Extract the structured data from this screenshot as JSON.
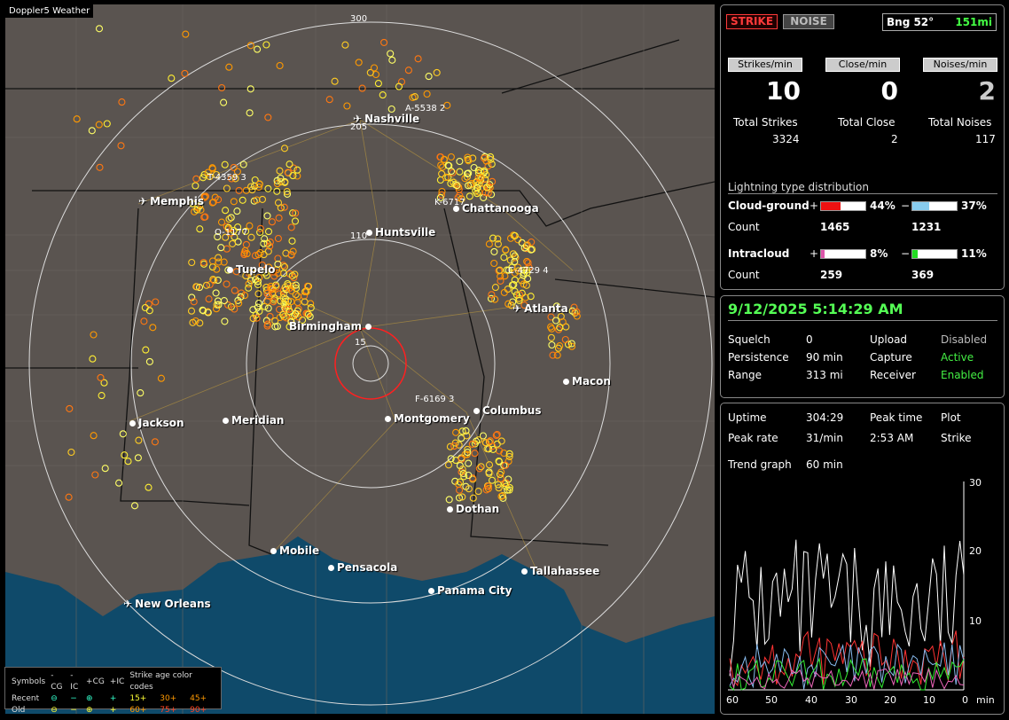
{
  "app_title": "Doppler5 Weather",
  "map": {
    "range_rings": [
      "300",
      "205",
      "110",
      "15"
    ],
    "cities": [
      {
        "name": "Nashville",
        "type": "airport"
      },
      {
        "name": "Memphis",
        "type": "airport"
      },
      {
        "name": "Chattanooga",
        "type": "city"
      },
      {
        "name": "Huntsville",
        "type": "city"
      },
      {
        "name": "Tupelo",
        "type": "city"
      },
      {
        "name": "Atlanta",
        "type": "airport"
      },
      {
        "name": "Birmingham",
        "type": "city"
      },
      {
        "name": "Macon",
        "type": "city"
      },
      {
        "name": "Jackson",
        "type": "airport"
      },
      {
        "name": "Meridian",
        "type": "city"
      },
      {
        "name": "Montgomery",
        "type": "city"
      },
      {
        "name": "Columbus",
        "type": "city"
      },
      {
        "name": "Dothan",
        "type": "city"
      },
      {
        "name": "Mobile",
        "type": "city"
      },
      {
        "name": "Pensacola",
        "type": "city"
      },
      {
        "name": "Tallahassee",
        "type": "city"
      },
      {
        "name": "Panama City",
        "type": "city"
      },
      {
        "name": "New Orleans",
        "type": "airport"
      }
    ],
    "storm_labels": [
      "A-5538 2",
      "T-4359 3",
      "K-6717",
      "O-1177",
      "C-4729 4",
      "F-6169 3"
    ]
  },
  "legend": {
    "symbols_label": "Symbols",
    "col_heads": [
      "-CG",
      "-IC",
      "+CG",
      "+IC"
    ],
    "age_label": "Strike age color codes",
    "recent_label": "Recent",
    "old_label": "Old",
    "recent_ages": [
      "15+",
      "30+",
      "45+"
    ],
    "old_ages": [
      "60+",
      "75+",
      "90+"
    ]
  },
  "status": {
    "strike_button": "STRIKE",
    "noise_button": "NOISE",
    "bearing": "Bng 52°",
    "distance": "151mi",
    "headers": [
      "Strikes/min",
      "Close/min",
      "Noises/min"
    ],
    "rates": [
      "10",
      "0",
      "2"
    ],
    "total_labels": [
      "Total Strikes",
      "Total Close",
      "Total Noises"
    ],
    "totals": [
      "3324",
      "2",
      "117"
    ],
    "distribution_title": "Lightning type distribution",
    "cloud_ground": {
      "label": "Cloud-ground",
      "pos_pct": "44%",
      "neg_pct": "37%",
      "pos_fill": 0.44,
      "neg_fill": 0.37,
      "count_label": "Count",
      "pos_count": "1465",
      "neg_count": "1231"
    },
    "intracloud": {
      "label": "Intracloud",
      "pos_pct": "8%",
      "neg_pct": "11%",
      "pos_fill": 0.08,
      "neg_fill": 0.11,
      "count_label": "Count",
      "pos_count": "259",
      "neg_count": "369"
    }
  },
  "settings": {
    "datetime": "9/12/2025 5:14:29 AM",
    "squelch_label": "Squelch",
    "squelch": "0",
    "persistence_label": "Persistence",
    "persistence": "90 min",
    "range_label": "Range",
    "range": "313 mi",
    "upload_label": "Upload",
    "upload": "Disabled",
    "capture_label": "Capture",
    "capture": "Active",
    "receiver_label": "Receiver",
    "receiver": "Enabled"
  },
  "trend": {
    "uptime_label": "Uptime",
    "uptime": "304:29",
    "peak_time_label": "Peak time",
    "peak_time": "2:53 AM",
    "plot_label": "Plot",
    "plot": "Strike",
    "peak_rate_label": "Peak rate",
    "peak_rate": "31/min",
    "trend_graph_label": "Trend graph",
    "trend_graph": "60 min",
    "y_ticks": [
      "30",
      "20",
      "10"
    ],
    "x_ticks": [
      "60",
      "50",
      "40",
      "30",
      "20",
      "10",
      "0"
    ],
    "x_unit": "min"
  },
  "colors": {
    "recent": "#ffff33",
    "mid": "#ff9900",
    "old": "#ff4422",
    "ic": "#33ffcc",
    "ok": "#44ee44"
  }
}
